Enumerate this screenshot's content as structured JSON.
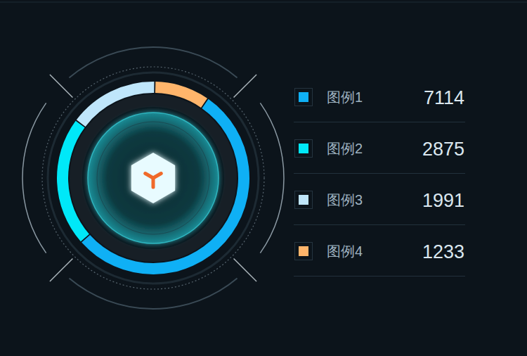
{
  "chart_data": {
    "type": "pie",
    "categories": [
      "图例1",
      "图例2",
      "图例3",
      "图例4"
    ],
    "values": [
      7114,
      2875,
      1991,
      1233
    ],
    "colors": [
      "#0fb0f5",
      "#00e8f8",
      "#bfe6fb",
      "#ffb56b"
    ],
    "legend": "right"
  }
}
